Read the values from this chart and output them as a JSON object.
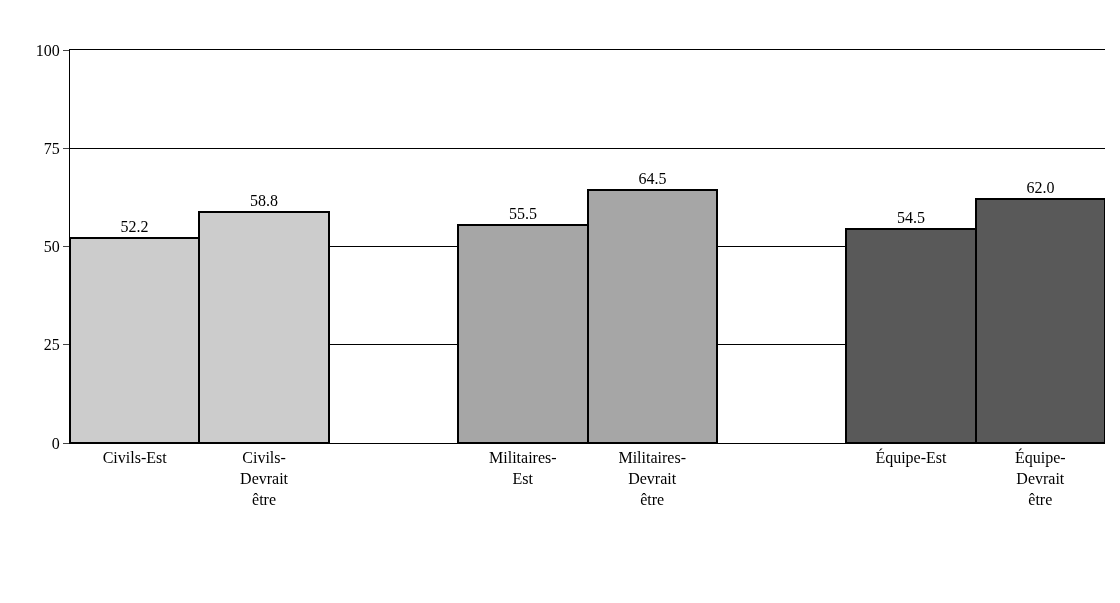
{
  "chart_data": {
    "type": "bar",
    "categories": [
      "Civils-Est",
      "Civils-Devrait être",
      null,
      "Militaires-Est",
      "Militaires-Devrait être",
      null,
      "Équipe-Est",
      "Équipe-Devrait être"
    ],
    "values": [
      52.2,
      58.8,
      null,
      55.5,
      64.5,
      null,
      54.5,
      62.0
    ],
    "value_labels": [
      "52.2",
      "58.8",
      null,
      "55.5",
      "64.5",
      null,
      "54.5",
      "62.0"
    ],
    "colors": [
      "#cccccc",
      "#cccccc",
      null,
      "#a6a6a6",
      "#a6a6a6",
      null,
      "#595959",
      "#595959"
    ],
    "ylim": [
      0,
      100
    ],
    "yticks": [
      0,
      25,
      50,
      75,
      100
    ],
    "grid": "y"
  }
}
